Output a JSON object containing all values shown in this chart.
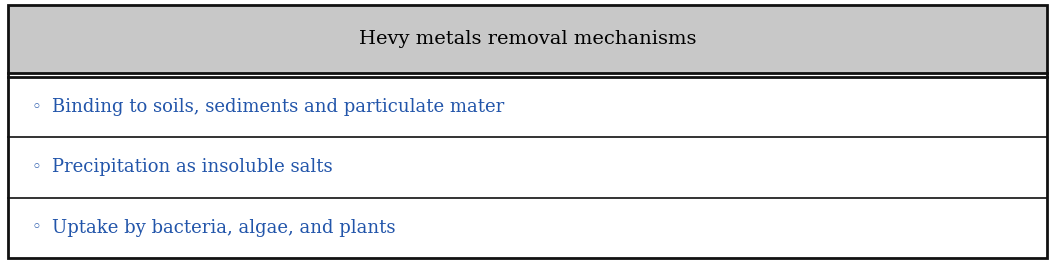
{
  "title": "Hevy metals removal mechanisms",
  "title_color": "#000000",
  "title_bg": "#c8c8c8",
  "title_fontsize": 14,
  "items": [
    "Binding to soils, sediments and particulate mater",
    "Precipitation as insoluble salts",
    "Uptake by bacteria, algae, and plants"
  ],
  "item_color": "#2255aa",
  "item_fontsize": 13,
  "bullet": "◦",
  "bg_color": "#ffffff",
  "outer_border_color": "#111111",
  "inner_border_color": "#111111",
  "figsize": [
    10.55,
    2.63
  ],
  "dpi": 100
}
